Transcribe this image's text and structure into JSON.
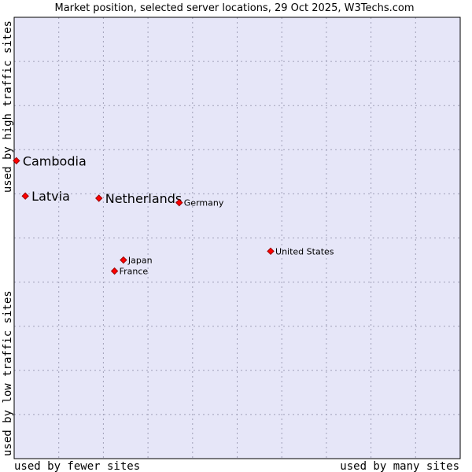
{
  "chart_data": {
    "type": "scatter",
    "title": "Market position, selected server locations, 29 Oct 2025, W3Techs.com",
    "xlabel_left": "used by fewer sites",
    "xlabel_right": "used by many sites",
    "ylabel_top": "used by high traffic sites",
    "ylabel_bottom": "used by low traffic sites",
    "xlim": [
      0,
      100
    ],
    "ylim": [
      0,
      100
    ],
    "grid": true,
    "colors": {
      "plot_bg": "#e6e6f8",
      "grid": "#a0a0b8",
      "point": "#ff0000",
      "point_border": "#990000"
    },
    "points": [
      {
        "label": "Cambodia",
        "x": 0.5,
        "y": 67.5,
        "emphasis": true
      },
      {
        "label": "Latvia",
        "x": 2.5,
        "y": 59.5,
        "emphasis": true
      },
      {
        "label": "Netherlands",
        "x": 19.0,
        "y": 59.0,
        "emphasis": true
      },
      {
        "label": "Germany",
        "x": 37.0,
        "y": 58.0,
        "emphasis": false
      },
      {
        "label": "United States",
        "x": 57.5,
        "y": 47.0,
        "emphasis": false
      },
      {
        "label": "Japan",
        "x": 24.5,
        "y": 45.0,
        "emphasis": false
      },
      {
        "label": "France",
        "x": 22.5,
        "y": 42.5,
        "emphasis": false
      }
    ]
  }
}
